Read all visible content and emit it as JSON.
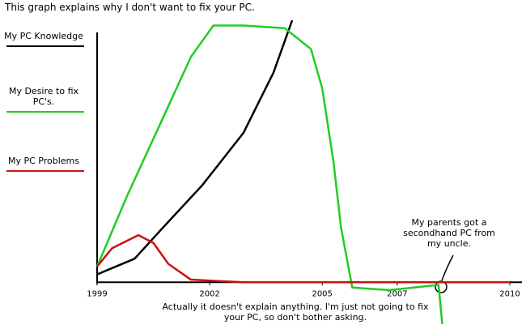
{
  "chart_data": {
    "type": "line",
    "title": "This graph explains why I don't want to fix your PC.",
    "annotations": [
      "My parents got a secondhand PC from my uncle.",
      "Actually it doesn't explain anything. I'm just not going to fix your PC, so don't bother asking."
    ],
    "xlim": [
      1999,
      2010
    ],
    "xticks": [
      1999,
      2002,
      2005,
      2007,
      2010
    ],
    "ylim": [
      -16,
      100
    ],
    "series": [
      {
        "name": "My PC Knowledge",
        "color": "#000000",
        "x": [
          1999,
          2000,
          2000.7,
          2001.8,
          2002.9,
          2003.7,
          2004.2
        ],
        "values": [
          3,
          9,
          20,
          37,
          57,
          80,
          100
        ]
      },
      {
        "name": "My Desire to fix PC's.",
        "color": "#22cc22",
        "x": [
          1999,
          1999.8,
          2000.7,
          2001.5,
          2002.1,
          2002.9,
          2004,
          2004.7,
          2005,
          2005.3,
          2005.5,
          2005.8,
          2006.8,
          2008.1,
          2008.2
        ],
        "values": [
          6,
          33,
          61,
          86,
          98,
          98,
          97,
          89,
          74,
          46,
          21,
          -2,
          -3,
          -1,
          -16
        ]
      },
      {
        "name": "My PC Problems",
        "color": "#cc1111",
        "x": [
          1999,
          1999.4,
          2000.1,
          2000.5,
          2000.9,
          2001.5,
          2002.9,
          2010
        ],
        "values": [
          6,
          13,
          18,
          15,
          7,
          1,
          0,
          0
        ]
      }
    ]
  }
}
